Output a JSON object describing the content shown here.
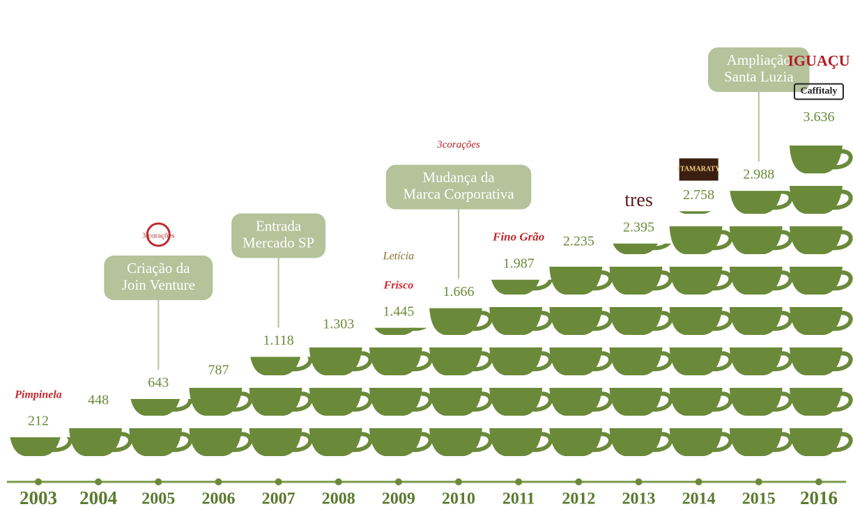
{
  "chart_data": {
    "type": "pictogram",
    "categories": [
      "2003",
      "2004",
      "2005",
      "2006",
      "2007",
      "2008",
      "2009",
      "2010",
      "2011",
      "2012",
      "2013",
      "2014",
      "2015",
      "2016"
    ],
    "values": [
      212,
      448,
      643,
      787,
      1118,
      1303,
      1445,
      1666,
      1987,
      2235,
      2395,
      2758,
      2988,
      3636
    ],
    "value_labels": [
      "212",
      "448",
      "643",
      "787",
      "1.118",
      "1.303",
      "1.445",
      "1.666",
      "1.987",
      "2.235",
      "2.395",
      "2.758",
      "2.988",
      "3.636"
    ],
    "color": "#6a8a3a",
    "annotations": [
      {
        "year": "2005",
        "lines": [
          "Criação da",
          "Join Venture"
        ]
      },
      {
        "year": "2007",
        "lines": [
          "Entrada",
          "Mercado SP"
        ]
      },
      {
        "year": "2010",
        "lines": [
          "Mudança da",
          "Marca Corporativa"
        ]
      },
      {
        "year": "2015",
        "lines": [
          "Ampliação",
          "Santa Luzia"
        ]
      }
    ],
    "logos": [
      {
        "year": "2003",
        "texts": [
          "Pimpinela"
        ]
      },
      {
        "year": "2005",
        "texts": [
          "3 corações"
        ]
      },
      {
        "year": "2009",
        "texts": [
          "Frisco",
          "Letícia"
        ]
      },
      {
        "year": "2010",
        "texts": [
          "3corações"
        ]
      },
      {
        "year": "2011",
        "texts": [
          "Fino Grão"
        ]
      },
      {
        "year": "2013",
        "texts": [
          "tres"
        ]
      },
      {
        "year": "2014",
        "texts": [
          "ITAMARATY"
        ]
      },
      {
        "year": "2016",
        "texts": [
          "Caffitaly",
          "IGUAÇU"
        ]
      }
    ]
  }
}
